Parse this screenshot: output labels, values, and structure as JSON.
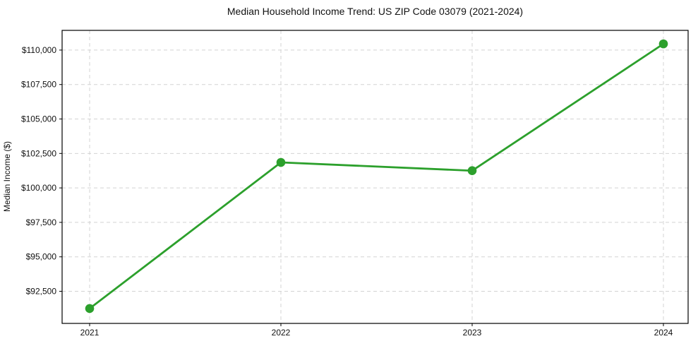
{
  "chart_data": {
    "type": "line",
    "title": "Median Household Income Trend: US ZIP Code 03079 (2021-2024)",
    "xlabel": "",
    "ylabel": "Median Income ($)",
    "categories": [
      "2021",
      "2022",
      "2023",
      "2024"
    ],
    "series": [
      {
        "name": "Median Household Income",
        "values": [
          91250,
          101850,
          101250,
          110450
        ]
      }
    ],
    "yticks": [
      92500,
      95000,
      97500,
      100000,
      102500,
      105000,
      107500,
      110000
    ],
    "ytick_labels": [
      "$92,500",
      "$95,000",
      "$97,500",
      "$100,000",
      "$102,500",
      "$105,000",
      "$107,500",
      "$110,000"
    ],
    "ylim": [
      90170,
      111430
    ],
    "grid": "both-dashed",
    "legend_position": "none",
    "colors": {
      "line": "#2ca02c",
      "marker": "#2ca02c",
      "grid": "#d3d3d3",
      "border": "#000000",
      "text": "#111111",
      "background": "#ffffff"
    }
  }
}
